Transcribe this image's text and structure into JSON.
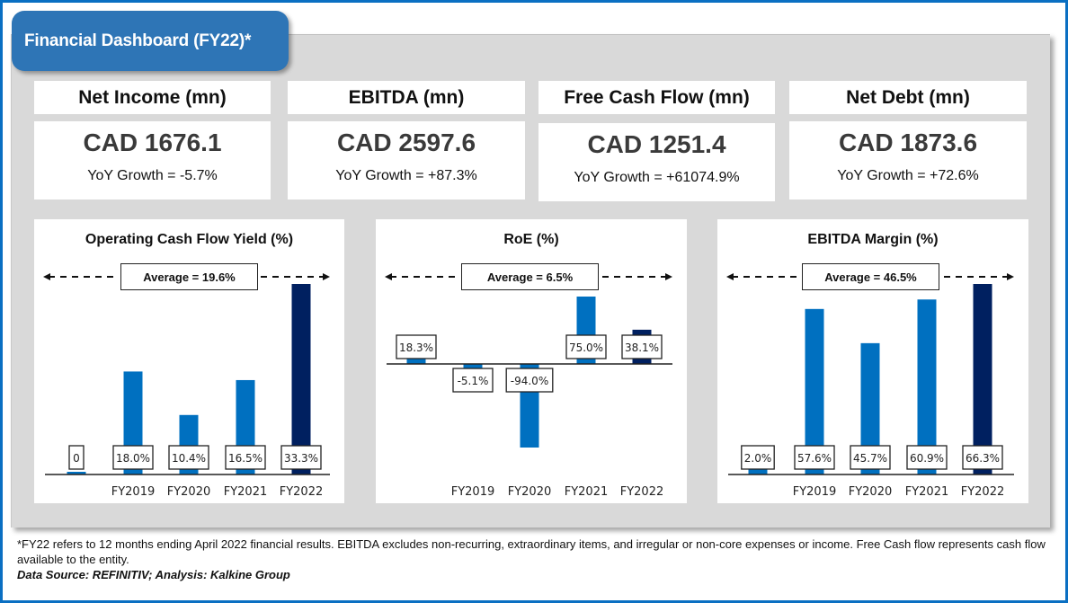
{
  "header": {
    "title": "Financial Dashboard (FY22)*"
  },
  "kpis": [
    {
      "label": "Net Income (mn)",
      "value": "CAD 1676.1",
      "growth": "YoY Growth = -5.7%"
    },
    {
      "label": "EBITDA (mn)",
      "value": "CAD 2597.6",
      "growth": "YoY Growth = +87.3%"
    },
    {
      "label": "Free Cash Flow (mn)",
      "value": "CAD 1251.4",
      "growth": "YoY Growth = +61074.9%"
    },
    {
      "label": "Net Debt (mn)",
      "value": "CAD 1873.6",
      "growth": "YoY Growth = +72.6%"
    }
  ],
  "colors": {
    "bar": "#0070c0",
    "bar_highlight": "#002060",
    "frame": "#0a6fc2",
    "title_bg": "#2e75b6",
    "panel_bg": "#d9d9d9"
  },
  "chart_data": [
    {
      "type": "bar",
      "title": "Operating Cash Flow Yield (%)",
      "average_label": "Average = 19.6%",
      "average": 19.6,
      "categories": [
        "",
        "FY2019",
        "FY2020",
        "FY2021",
        "FY2022"
      ],
      "values": [
        0,
        18.0,
        10.4,
        16.5,
        33.3
      ],
      "data_labels": [
        "0",
        "18.0%",
        "10.4%",
        "16.5%",
        "33.3%"
      ],
      "highlight_index": 4,
      "xlabel": "",
      "ylabel": "",
      "grid": false
    },
    {
      "type": "bar",
      "title": "RoE (%)",
      "average_label": "Average = 6.5%",
      "average": 6.5,
      "categories": [
        "",
        "FY2019",
        "FY2020",
        "FY2021",
        "FY2022"
      ],
      "values": [
        18.3,
        -5.1,
        -94.0,
        75.0,
        38.1
      ],
      "data_labels": [
        "18.3%",
        "-5.1%",
        "-94.0%",
        "75.0%",
        "38.1%"
      ],
      "highlight_index": 4,
      "xlabel": "",
      "ylabel": "",
      "grid": false
    },
    {
      "type": "bar",
      "title": "EBITDA Margin (%)",
      "average_label": "Average = 46.5%",
      "average": 46.5,
      "categories": [
        "",
        "FY2019",
        "FY2020",
        "FY2021",
        "FY2022"
      ],
      "values": [
        2.0,
        57.6,
        45.7,
        60.9,
        66.3
      ],
      "data_labels": [
        "2.0%",
        "57.6%",
        "45.7%",
        "60.9%",
        "66.3%"
      ],
      "highlight_index": 4,
      "xlabel": "",
      "ylabel": "",
      "grid": false
    }
  ],
  "footnote": {
    "text": "*FY22  refers to 12 months ending April 2022 financial results. EBITDA excludes non-recurring, extraordinary items, and irregular or non-core expenses or income. Free Cash flow represents cash flow available to the entity.",
    "source": "Data Source: REFINITIV; Analysis: Kalkine Group"
  }
}
